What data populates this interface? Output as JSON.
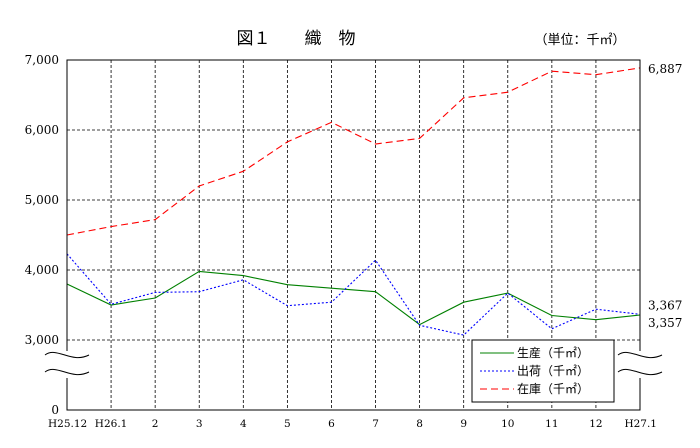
{
  "chart_data": {
    "type": "line",
    "title": "図１　　織　物",
    "unit_label": "（単位：千㎡）",
    "categories": [
      "H25.12",
      "H26.1",
      "2",
      "3",
      "4",
      "5",
      "6",
      "7",
      "8",
      "9",
      "10",
      "11",
      "12",
      "H27.1"
    ],
    "y_ticks": [
      "7,000",
      "6,000",
      "5,000",
      "4,000",
      "3,000",
      "0"
    ],
    "ylim": [
      0,
      7000
    ],
    "y_axis_break": {
      "from": 0,
      "to": 3000
    },
    "grid": true,
    "legend_position": "bottom-right",
    "series": [
      {
        "name": "生産（千㎡）",
        "style": "solid",
        "color": "#008000",
        "values": [
          3800,
          3500,
          3600,
          3980,
          3920,
          3790,
          3740,
          3690,
          3220,
          3540,
          3670,
          3350,
          3290,
          3357
        ]
      },
      {
        "name": "出荷（千㎡）",
        "style": "dotted",
        "color": "#0000ff",
        "values": [
          4230,
          3510,
          3680,
          3690,
          3860,
          3490,
          3540,
          4140,
          3210,
          3070,
          3670,
          3160,
          3440,
          3367
        ]
      },
      {
        "name": "在庫（千㎡）",
        "style": "dashed",
        "color": "#ff0000",
        "values": [
          4500,
          4620,
          4720,
          5200,
          5410,
          5830,
          6110,
          5800,
          5880,
          6460,
          6540,
          6840,
          6790,
          6887
        ]
      }
    ],
    "end_labels": [
      "6,887",
      "3,367",
      "3,357"
    ]
  }
}
